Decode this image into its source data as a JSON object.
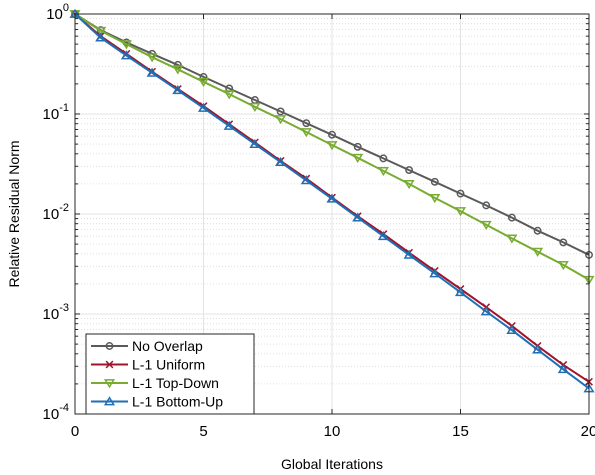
{
  "chart_data": {
    "type": "line",
    "title": "",
    "xlabel": "Global Iterations",
    "ylabel": "Relative Residual Norm",
    "xlim": [
      0,
      20
    ],
    "ylim": [
      0.0001,
      1
    ],
    "yscale": "log",
    "grid": true,
    "minor_grid": true,
    "legend_position": "bottom-left",
    "x_ticks": [
      "0",
      "5",
      "10",
      "15",
      "20"
    ],
    "y_tick_mantissa": [
      "10",
      "10",
      "10",
      "10",
      "10"
    ],
    "y_tick_exponents": [
      "-4",
      "-3",
      "-2",
      "-1",
      "0"
    ],
    "x": [
      0,
      1,
      2,
      3,
      4,
      5,
      6,
      7,
      8,
      9,
      10,
      11,
      12,
      13,
      14,
      15,
      16,
      17,
      18,
      19,
      20
    ],
    "series": [
      {
        "name": "No Overlap",
        "color": "#5a5a5a",
        "marker": "circle",
        "values": [
          1.0,
          0.69,
          0.52,
          0.4,
          0.31,
          0.235,
          0.18,
          0.138,
          0.106,
          0.081,
          0.062,
          0.047,
          0.036,
          0.0275,
          0.021,
          0.016,
          0.0122,
          0.0092,
          0.0068,
          0.0052,
          0.0039
        ]
      },
      {
        "name": "L-1 Uniform",
        "color": "#a0142a",
        "marker": "x",
        "values": [
          1.0,
          0.6,
          0.4,
          0.265,
          0.178,
          0.12,
          0.079,
          0.052,
          0.034,
          0.0226,
          0.0146,
          0.0095,
          0.0063,
          0.0041,
          0.0027,
          0.00178,
          0.00117,
          0.00076,
          0.00048,
          0.00031,
          0.00021
        ]
      },
      {
        "name": "L-1 Top-Down",
        "color": "#77ac30",
        "marker": "triangle-down",
        "values": [
          1.0,
          0.68,
          0.5,
          0.37,
          0.28,
          0.21,
          0.158,
          0.118,
          0.089,
          0.066,
          0.049,
          0.0365,
          0.027,
          0.02,
          0.0145,
          0.0107,
          0.0078,
          0.0057,
          0.0042,
          0.0031,
          0.0022
        ]
      },
      {
        "name": "L-1 Bottom-Up",
        "color": "#1f6fb5",
        "marker": "triangle-up",
        "values": [
          1.0,
          0.58,
          0.385,
          0.258,
          0.173,
          0.115,
          0.076,
          0.05,
          0.033,
          0.0217,
          0.0142,
          0.0092,
          0.006,
          0.0039,
          0.00254,
          0.00165,
          0.00106,
          0.00069,
          0.00044,
          0.00028,
          0.00018
        ]
      }
    ]
  }
}
